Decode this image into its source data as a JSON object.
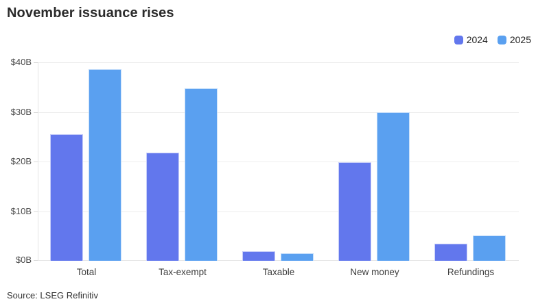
{
  "header": {
    "title": "November issuance rises"
  },
  "footer": {
    "source": "Source: LSEG Refinitiv"
  },
  "chart_data": {
    "type": "bar",
    "title": "November issuance rises",
    "categories": [
      "Total",
      "Tax-exempt",
      "Taxable",
      "New money",
      "Refundings"
    ],
    "series": [
      {
        "name": "2024",
        "color": "#6277ed",
        "values": [
          25.5,
          21.8,
          1.9,
          19.8,
          3.4
        ]
      },
      {
        "name": "2025",
        "color": "#5aa0f0",
        "values": [
          38.6,
          34.7,
          1.5,
          30.0,
          5.1
        ]
      }
    ],
    "xlabel": "",
    "ylabel": "",
    "ylim": [
      0,
      40
    ],
    "ytick_step": 10,
    "ytick_labels": [
      "$0B",
      "$10B",
      "$20B",
      "$30B",
      "$40B"
    ],
    "grid": true,
    "legend_position": "top-right",
    "colors": {
      "grid": "#ededed",
      "axis": "#e4e4e4",
      "tick": "#d8d8d8"
    }
  }
}
